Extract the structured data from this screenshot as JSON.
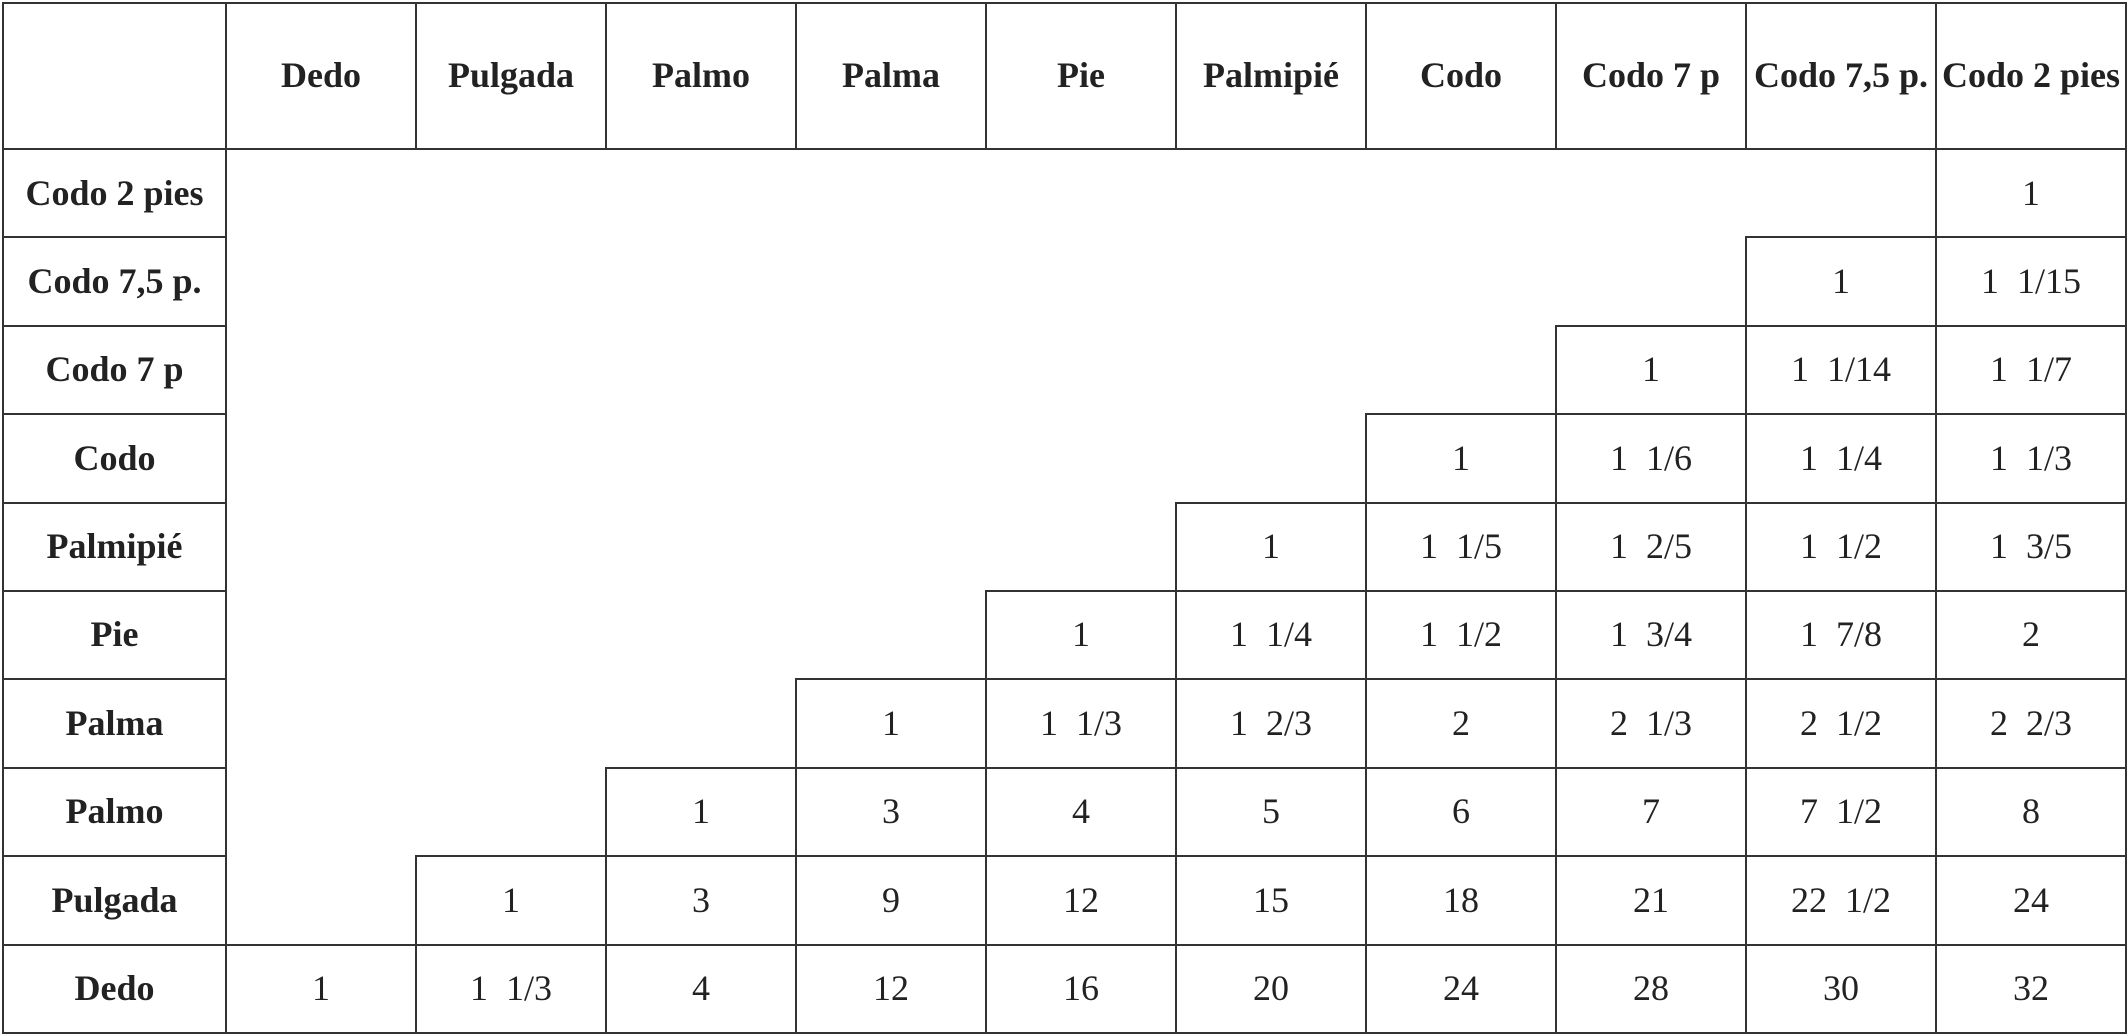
{
  "table": {
    "corner": "",
    "columns": [
      "Dedo",
      "Pulgada",
      "Palmo",
      "Palma",
      "Pie",
      "Palmipié",
      "Codo",
      "Codo 7 p",
      "Codo 7,5 p.",
      "Codo 2 pies"
    ],
    "rows": [
      {
        "label": "Codo 2 pies",
        "cells": [
          "",
          "",
          "",
          "",
          "",
          "",
          "",
          "",
          "",
          "1"
        ]
      },
      {
        "label": "Codo 7,5 p.",
        "cells": [
          "",
          "",
          "",
          "",
          "",
          "",
          "",
          "",
          "1",
          "1  1/15"
        ]
      },
      {
        "label": "Codo 7 p",
        "cells": [
          "",
          "",
          "",
          "",
          "",
          "",
          "",
          "1",
          "1  1/14",
          "1  1/7"
        ]
      },
      {
        "label": "Codo",
        "cells": [
          "",
          "",
          "",
          "",
          "",
          "",
          "1",
          "1  1/6",
          "1  1/4",
          "1  1/3"
        ]
      },
      {
        "label": "Palmipié",
        "cells": [
          "",
          "",
          "",
          "",
          "",
          "1",
          "1  1/5",
          "1  2/5",
          "1  1/2",
          "1  3/5"
        ]
      },
      {
        "label": "Pie",
        "cells": [
          "",
          "",
          "",
          "",
          "1",
          "1  1/4",
          "1  1/2",
          "1  3/4",
          "1  7/8",
          "2"
        ]
      },
      {
        "label": "Palma",
        "cells": [
          "",
          "",
          "",
          "1",
          "1  1/3",
          "1  2/3",
          "2",
          "2  1/3",
          "2  1/2",
          "2  2/3"
        ]
      },
      {
        "label": "Palmo",
        "cells": [
          "",
          "",
          "1",
          "3",
          "4",
          "5",
          "6",
          "7",
          "7  1/2",
          "8"
        ]
      },
      {
        "label": "Pulgada",
        "cells": [
          "",
          "1",
          "3",
          "9",
          "12",
          "15",
          "18",
          "21",
          "22  1/2",
          "24"
        ]
      },
      {
        "label": "Dedo",
        "cells": [
          "1",
          "1  1/3",
          "4",
          "12",
          "16",
          "20",
          "24",
          "28",
          "30",
          "32"
        ]
      }
    ]
  }
}
